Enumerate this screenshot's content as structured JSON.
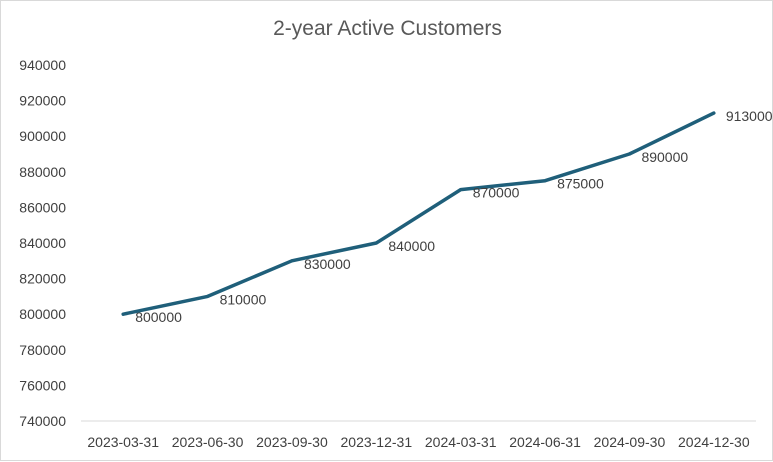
{
  "chart_data": {
    "type": "line",
    "title": "2-year Active Customers",
    "xlabel": "",
    "ylabel": "",
    "categories": [
      "2023-03-31",
      "2023-06-30",
      "2023-09-30",
      "2023-12-31",
      "2024-03-31",
      "2024-06-31",
      "2024-09-30",
      "2024-12-30"
    ],
    "series": [
      {
        "values": [
          800000,
          810000,
          830000,
          840000,
          870000,
          875000,
          890000,
          913000
        ]
      }
    ],
    "data_labels": [
      "800000",
      "810000",
      "830000",
      "840000",
      "870000",
      "875000",
      "890000",
      "913000"
    ],
    "yticks": [
      "740000",
      "760000",
      "780000",
      "800000",
      "820000",
      "840000",
      "860000",
      "880000",
      "900000",
      "920000",
      "940000"
    ],
    "ylim": [
      740000,
      940000
    ],
    "grid": false,
    "legend": "none",
    "colors": {
      "line": "#1f5f7a",
      "axis": "#d9d9d9",
      "text": "#404040",
      "title": "#595959"
    }
  }
}
